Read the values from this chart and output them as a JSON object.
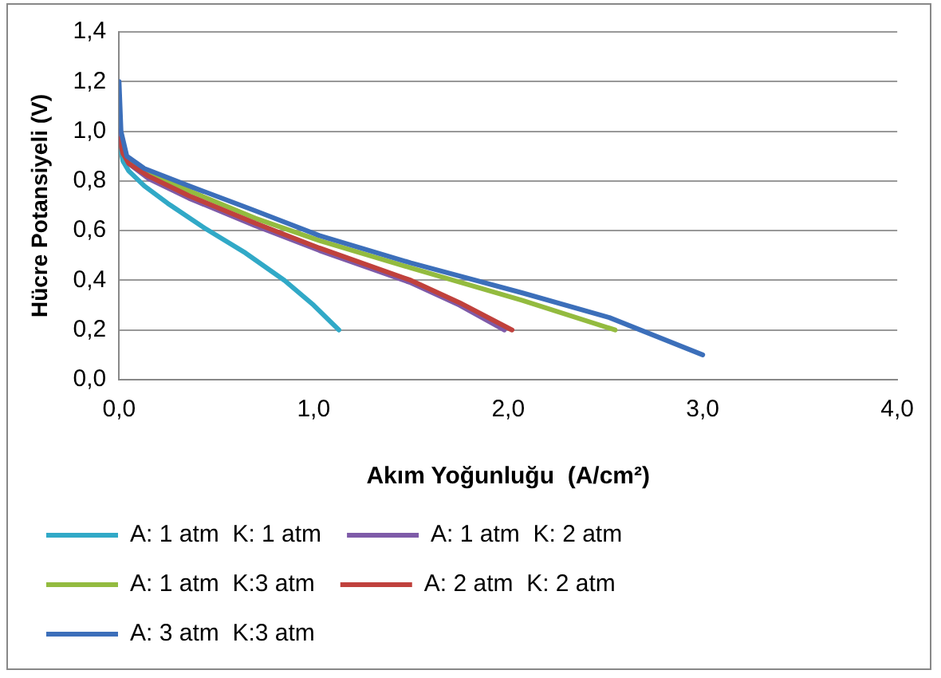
{
  "chart_data": {
    "type": "line",
    "xlabel": "Akım Yoğunluğu  (A/cm²)",
    "ylabel": "Hücre Potansiyeli (V)",
    "xlim": [
      0,
      4
    ],
    "xticks": [
      {
        "value": 0,
        "label": "0,0"
      },
      {
        "value": 1,
        "label": "1,0"
      },
      {
        "value": 2,
        "label": "2,0"
      },
      {
        "value": 3,
        "label": "3,0"
      },
      {
        "value": 4,
        "label": "4,0"
      }
    ],
    "ylim": [
      0,
      1.4
    ],
    "yticks": [
      {
        "value": 0,
        "label": "0,0"
      },
      {
        "value": 0.2,
        "label": "0,2"
      },
      {
        "value": 0.4,
        "label": "0,4"
      },
      {
        "value": 0.6,
        "label": "0,6"
      },
      {
        "value": 0.8,
        "label": "0,8"
      },
      {
        "value": 1,
        "label": "1,0"
      },
      {
        "value": 1.2,
        "label": "1,2"
      },
      {
        "value": 1.4,
        "label": "1,4"
      }
    ],
    "grid": "y",
    "legend": "bottom",
    "marker": "none",
    "line_style": "solid",
    "series": [
      {
        "name": "A: 1 atm  K: 1 atm",
        "color": "#31a9c7",
        "x": [
          0,
          0.02,
          0.05,
          0.13,
          0.25,
          0.44,
          0.65,
          0.85,
          1.0,
          1.13
        ],
        "values": [
          0.96,
          0.88,
          0.84,
          0.78,
          0.71,
          0.61,
          0.51,
          0.4,
          0.3,
          0.2
        ]
      },
      {
        "name": "A: 1 atm  K: 2 atm",
        "color": "#7e5ba8",
        "x": [
          0,
          0.02,
          0.05,
          0.15,
          0.36,
          0.7,
          1.03,
          1.5,
          1.75,
          1.98
        ],
        "values": [
          1.0,
          0.92,
          0.87,
          0.81,
          0.73,
          0.62,
          0.52,
          0.39,
          0.3,
          0.2
        ]
      },
      {
        "name": "A: 1 atm  K:3 atm",
        "color": "#93bb3f",
        "x": [
          0.05,
          0.15,
          0.36,
          0.7,
          1.03,
          1.5,
          2.07,
          2.55
        ],
        "values": [
          0.88,
          0.83,
          0.76,
          0.65,
          0.56,
          0.45,
          0.32,
          0.2
        ]
      },
      {
        "name": "A: 2 atm  K: 2 atm",
        "color": "#c0413c",
        "x": [
          0,
          0.02,
          0.05,
          0.15,
          0.36,
          0.7,
          1.03,
          1.5,
          1.75,
          2.02
        ],
        "values": [
          0.97,
          0.91,
          0.87,
          0.82,
          0.74,
          0.63,
          0.53,
          0.4,
          0.31,
          0.2
        ]
      },
      {
        "name": "A: 3 atm  K:3 atm",
        "color": "#3c6fba",
        "x": [
          0,
          0.01,
          0.04,
          0.13,
          0.36,
          0.7,
          1.03,
          1.5,
          2.07,
          2.52,
          3.0
        ],
        "values": [
          1.2,
          1.0,
          0.9,
          0.85,
          0.78,
          0.68,
          0.58,
          0.47,
          0.35,
          0.25,
          0.1
        ]
      }
    ]
  }
}
